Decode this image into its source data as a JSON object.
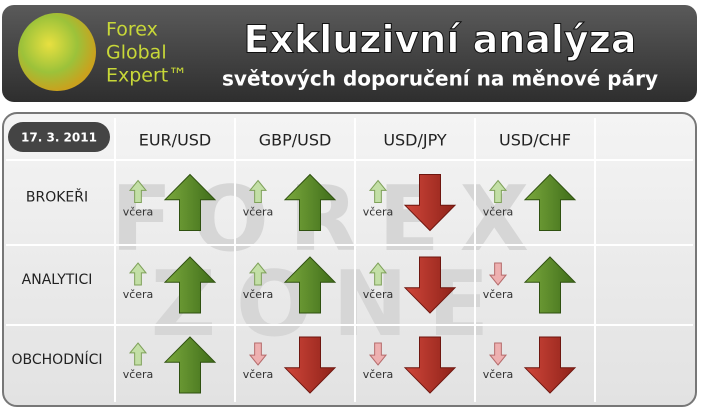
{
  "header": {
    "logo": [
      "Forex",
      "Global",
      "Expert™"
    ],
    "title": "Exkluzivní analýza",
    "subtitle": "světových doporučení na měnové páry"
  },
  "watermark": [
    "FOREX",
    "ZONE"
  ],
  "table": {
    "date": "17. 3. 2011",
    "columns": [
      "EUR/USD",
      "GBP/USD",
      "USD/JPY",
      "USD/CHF"
    ],
    "yesterday_label": "včera",
    "rows": [
      {
        "label": "BROKEŘI",
        "cells": [
          {
            "yesterday": "up",
            "today": "up"
          },
          {
            "yesterday": "up",
            "today": "up"
          },
          {
            "yesterday": "up",
            "today": "down"
          },
          {
            "yesterday": "up",
            "today": "up"
          }
        ]
      },
      {
        "label": "ANALYTICI",
        "cells": [
          {
            "yesterday": "up",
            "today": "up"
          },
          {
            "yesterday": "up",
            "today": "up"
          },
          {
            "yesterday": "up",
            "today": "down"
          },
          {
            "yesterday": "down",
            "today": "up"
          }
        ]
      },
      {
        "label": "OBCHODNÍCI",
        "cells": [
          {
            "yesterday": "up",
            "today": "up"
          },
          {
            "yesterday": "down",
            "today": "down"
          },
          {
            "yesterday": "down",
            "today": "down"
          },
          {
            "yesterday": "down",
            "today": "down"
          }
        ]
      }
    ]
  }
}
